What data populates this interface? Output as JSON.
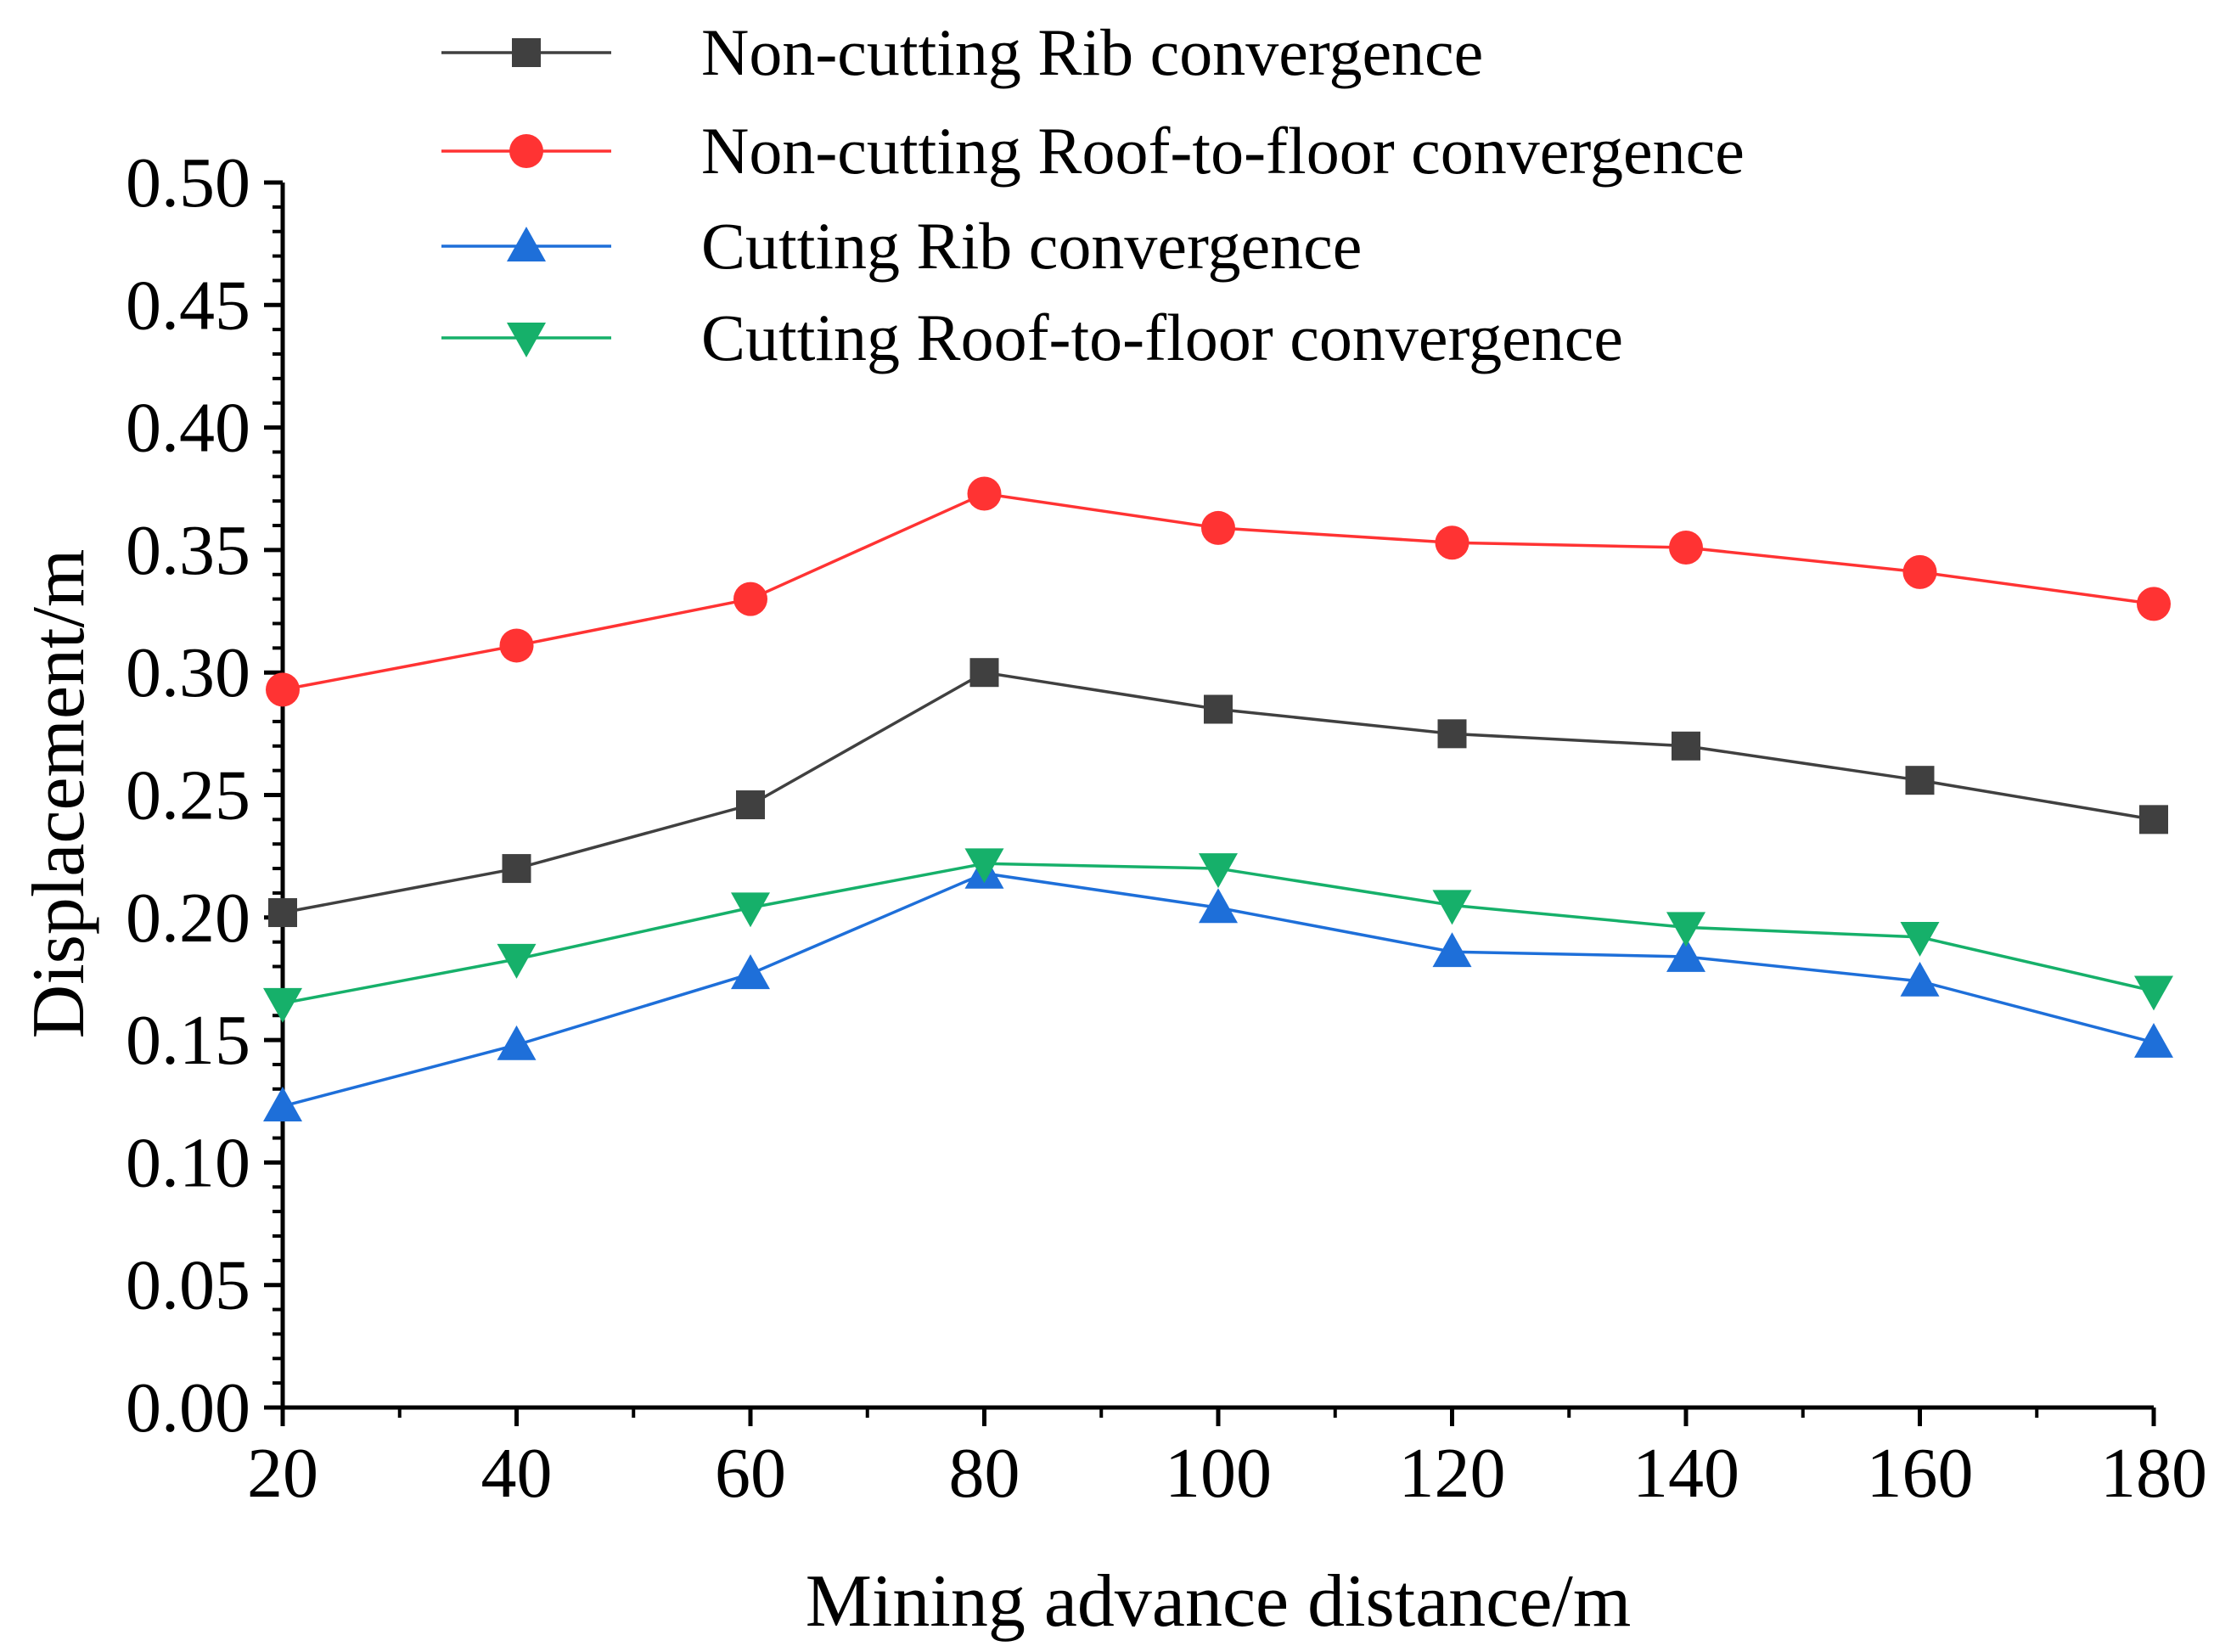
{
  "chart_data": {
    "type": "line",
    "title": "",
    "xlabel": "Mining advance distance/m",
    "ylabel": "Displacement/m",
    "x": [
      20,
      40,
      60,
      80,
      100,
      120,
      140,
      160,
      180
    ],
    "xlim": [
      20,
      180
    ],
    "ylim": [
      0.0,
      0.5
    ],
    "xticks": [
      20,
      40,
      60,
      80,
      100,
      120,
      140,
      160,
      180
    ],
    "x_tick_labels": [
      "20",
      "40",
      "60",
      "80",
      "100",
      "120",
      "140",
      "160",
      "180"
    ],
    "yticks": [
      0.0,
      0.05,
      0.1,
      0.15,
      0.2,
      0.25,
      0.3,
      0.35,
      0.4,
      0.45,
      0.5
    ],
    "y_tick_labels": [
      "0.00",
      "0.05",
      "0.10",
      "0.15",
      "0.20",
      "0.25",
      "0.30",
      "0.35",
      "0.40",
      "0.45",
      "0.50"
    ],
    "grid": false,
    "legend_position": "top",
    "series": [
      {
        "name": "Non-cutting Rib convergence",
        "marker": "square",
        "color": "#404040",
        "values": [
          0.202,
          0.22,
          0.246,
          0.3,
          0.285,
          0.275,
          0.27,
          0.256,
          0.24
        ]
      },
      {
        "name": "Non-cutting Roof-to-floor convergence",
        "marker": "circle",
        "color": "#ff3333",
        "values": [
          0.293,
          0.311,
          0.33,
          0.373,
          0.359,
          0.353,
          0.351,
          0.341,
          0.328
        ]
      },
      {
        "name": "Cutting Rib convergence",
        "marker": "triangle-up",
        "color": "#1e6fd9",
        "values": [
          0.123,
          0.148,
          0.177,
          0.218,
          0.204,
          0.186,
          0.184,
          0.174,
          0.149
        ]
      },
      {
        "name": "Cutting Roof-to-floor convergence",
        "marker": "triangle-down",
        "color": "#16b06a",
        "values": [
          0.165,
          0.183,
          0.204,
          0.222,
          0.22,
          0.205,
          0.196,
          0.192,
          0.17
        ]
      }
    ]
  }
}
